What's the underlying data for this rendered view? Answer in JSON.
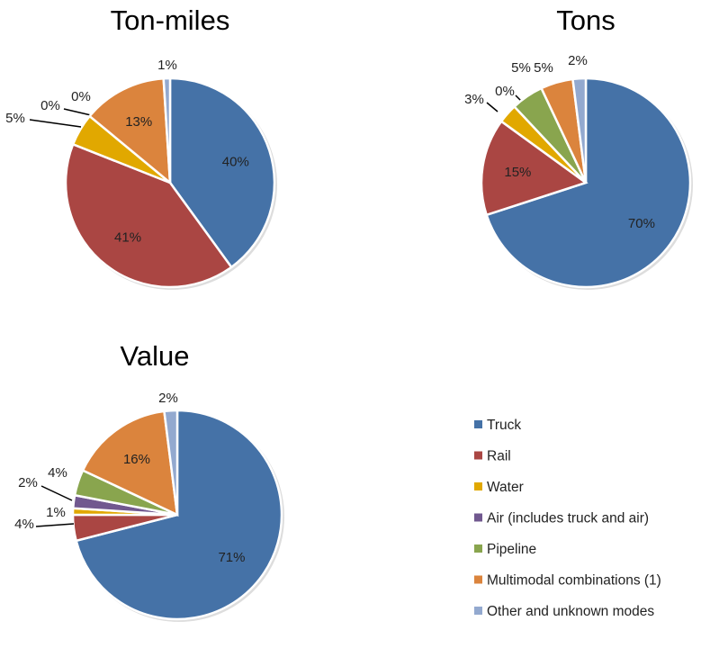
{
  "chart_data": [
    {
      "type": "pie",
      "title": "Ton-miles",
      "categories": [
        "Truck",
        "Rail",
        "Water",
        "Air (includes truck and air)",
        "Pipeline",
        "Multimodal combinations (1)",
        "Other and unknown modes"
      ],
      "values": [
        40,
        41,
        5,
        0,
        0,
        13,
        1
      ],
      "labels": [
        "40%",
        "41%",
        "5%",
        "0%",
        "0%",
        "13%",
        "1%"
      ]
    },
    {
      "type": "pie",
      "title": "Tons",
      "categories": [
        "Truck",
        "Rail",
        "Water",
        "Air (includes truck and air)",
        "Pipeline",
        "Multimodal combinations (1)",
        "Other and unknown modes"
      ],
      "values": [
        70,
        15,
        3,
        0,
        5,
        5,
        2
      ],
      "labels": [
        "70%",
        "15%",
        "3%",
        "0%",
        "5%",
        "5%",
        "2%"
      ]
    },
    {
      "type": "pie",
      "title": "Value",
      "categories": [
        "Truck",
        "Rail",
        "Water",
        "Air (includes truck and air)",
        "Pipeline",
        "Multimodal combinations (1)",
        "Other and unknown modes"
      ],
      "values": [
        71,
        4,
        1,
        2,
        4,
        16,
        2
      ],
      "labels": [
        "71%",
        "4%",
        "1%",
        "2%",
        "4%",
        "16%",
        "2%"
      ]
    }
  ],
  "legend": {
    "placement": "bottom-right",
    "items": [
      {
        "label": "Truck",
        "color": "#4572A7"
      },
      {
        "label": "Rail",
        "color": "#AA4643"
      },
      {
        "label": "Water",
        "color": "#E1A800"
      },
      {
        "label": "Air (includes truck and air)",
        "color": "#71588F"
      },
      {
        "label": "Pipeline",
        "color": "#89A54E"
      },
      {
        "label": "Multimodal combinations (1)",
        "color": "#DB843D"
      },
      {
        "label": "Other and unknown modes",
        "color": "#93A9CF"
      }
    ]
  }
}
